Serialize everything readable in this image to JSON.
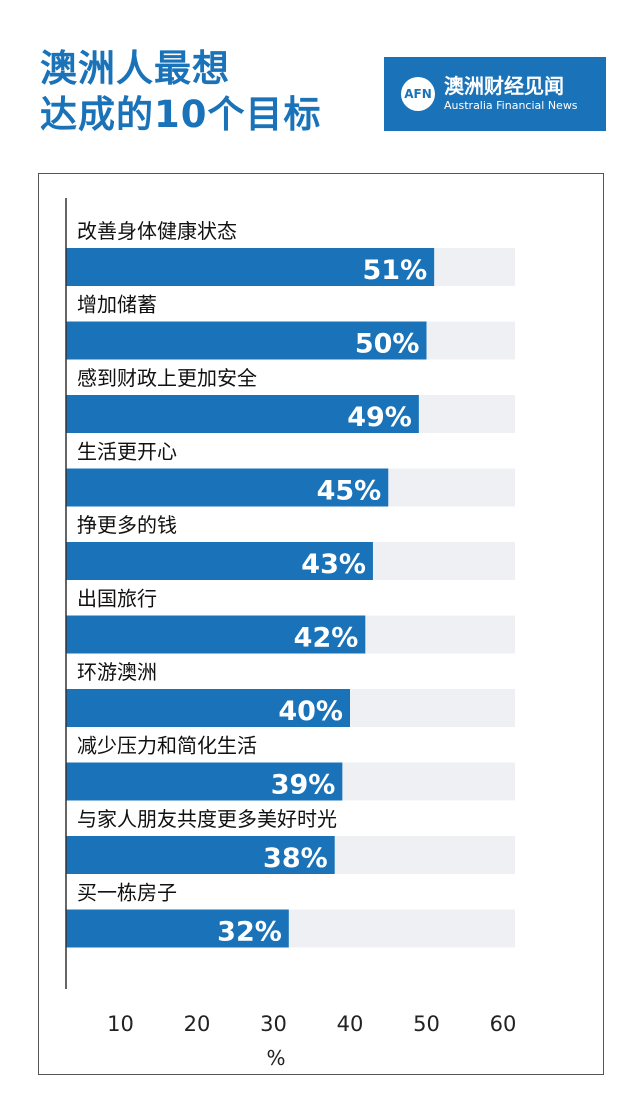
{
  "title_lines": [
    "澳洲人最想",
    "达成的10个目标"
  ],
  "logo": {
    "mark": "AFN",
    "cn": "澳洲财经见闻",
    "en": "Australia Financial News",
    "bg_color": "#1a73b8"
  },
  "chart_data": {
    "type": "bar",
    "orientation": "horizontal",
    "categories": [
      "改善身体健康状态",
      "增加储蓄",
      "感到财政上更加安全",
      "生活更开心",
      "挣更多的钱",
      "出国旅行",
      "环游澳洲",
      "减少压力和简化生活",
      "与家人朋友共度更多美好时光",
      "买一栋房子"
    ],
    "values": [
      51,
      50,
      49,
      45,
      43,
      42,
      40,
      39,
      38,
      32
    ],
    "value_labels": [
      "51%",
      "50%",
      "49%",
      "45%",
      "43%",
      "42%",
      "40%",
      "39%",
      "38%",
      "32%"
    ],
    "x_ticks": [
      10,
      20,
      30,
      40,
      50,
      60
    ],
    "xlabel": "%",
    "xlim": [
      0,
      60
    ],
    "bar_color": "#1a73b8",
    "track_color": "#eef0f4",
    "legend": "none"
  }
}
